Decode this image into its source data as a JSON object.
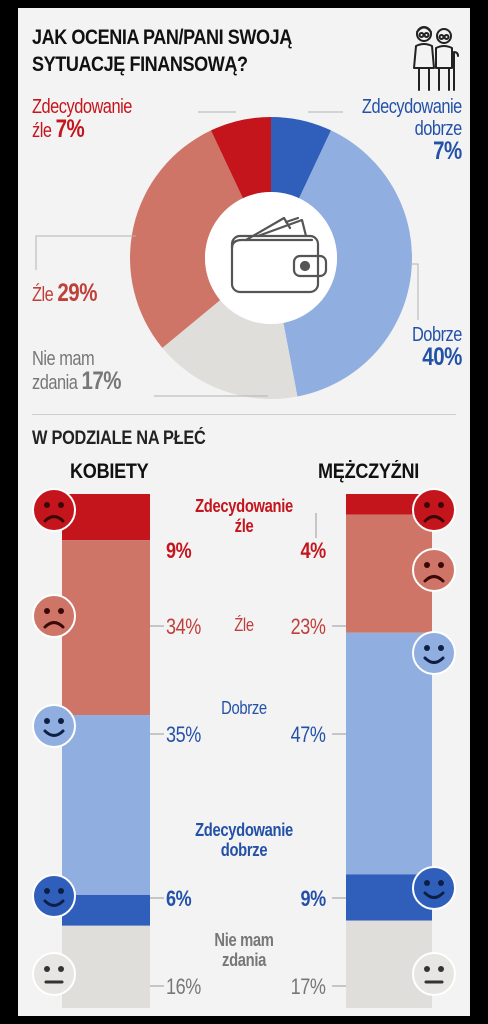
{
  "title": "JAK OCENIA PAN/PANI SWOJĄ SYTUACJĘ FINANSOWĄ?",
  "subtitle": "W PODZIALE NA PŁEĆ",
  "icons": {
    "header": "elderly-couple-icon",
    "center": "wallet-icon",
    "faces": [
      "very-sad-face-icon",
      "sad-face-icon",
      "smile-face-icon",
      "big-smile-face-icon",
      "neutral-face-icon"
    ]
  },
  "colors": {
    "very_bad": "#c4151d",
    "bad": "#cf7568",
    "good": "#90aee0",
    "very_good": "#2f5fba",
    "none": "#e0dedb",
    "neutral_face": "#e8e6e3"
  },
  "chart_data": [
    {
      "type": "pie",
      "donut": true,
      "categories": [
        "Zdecydowanie dobrze",
        "Dobrze",
        "Nie mam zdania",
        "Źle",
        "Zdecydowanie źle"
      ],
      "values": [
        7,
        40,
        17,
        29,
        7
      ],
      "label_texts": {
        "very_good_word": "Zdecydowanie",
        "very_good_word2": "dobrze",
        "very_good_pct": "7%",
        "good_word": "Dobrze",
        "good_pct": "40%",
        "none_word": "Nie mam",
        "none_word2": "zdania",
        "none_pct": "17%",
        "bad_word": "Źle",
        "bad_pct": "29%",
        "very_bad_word": "Zdecydowanie",
        "very_bad_word2": "źle",
        "very_bad_pct": "7%"
      }
    },
    {
      "type": "bar",
      "stacked": true,
      "categories": [
        "KOBIETY",
        "MĘŻCZYŹNI"
      ],
      "stack_order": [
        "Zdecydowanie źle",
        "Źle",
        "Dobrze",
        "Zdecydowanie dobrze",
        "Nie mam zdania"
      ],
      "series": [
        {
          "name": "Zdecydowanie źle",
          "values": [
            9,
            4
          ],
          "labels": [
            "9%",
            "4%"
          ]
        },
        {
          "name": "Źle",
          "values": [
            34,
            23
          ],
          "labels": [
            "34%",
            "23%"
          ]
        },
        {
          "name": "Dobrze",
          "values": [
            35,
            47
          ],
          "labels": [
            "35%",
            "47%"
          ]
        },
        {
          "name": "Zdecydowanie dobrze",
          "values": [
            6,
            9
          ],
          "labels": [
            "6%",
            "9%"
          ]
        },
        {
          "name": "Nie mam zdania",
          "values": [
            16,
            17
          ],
          "labels": [
            "16%",
            "17%"
          ]
        }
      ],
      "middle_labels": {
        "very_bad_1": "Zdecydowanie",
        "very_bad_2": "źle",
        "bad": "Źle",
        "good": "Dobrze",
        "very_good_1": "Zdecydowanie",
        "very_good_2": "dobrze",
        "none_1": "Nie mam",
        "none_2": "zdania"
      }
    }
  ]
}
